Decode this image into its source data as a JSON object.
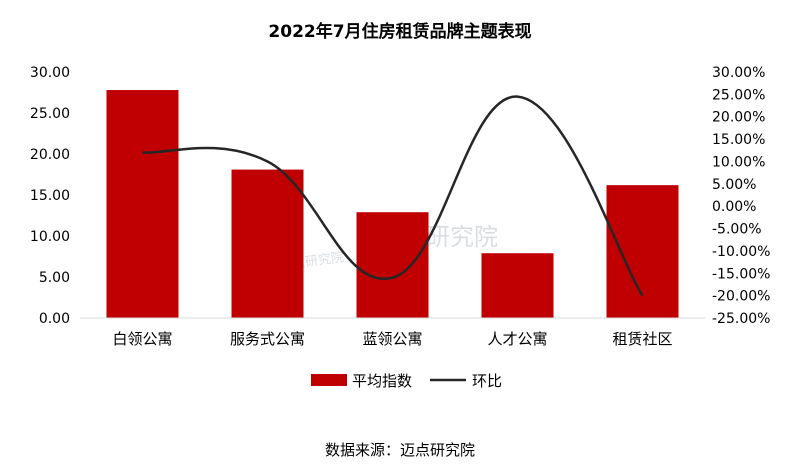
{
  "chart_data": {
    "type": "bar",
    "title": "2022年7月住房租赁品牌主题表现",
    "categories": [
      "白领公寓",
      "服务式公寓",
      "蓝领公寓",
      "人才公寓",
      "租赁社区"
    ],
    "series": [
      {
        "name": "平均指数",
        "type": "bar",
        "axis": "left",
        "color": "#c00000",
        "values": [
          27.8,
          18.1,
          12.9,
          7.9,
          16.2
        ]
      },
      {
        "name": "环比",
        "type": "line",
        "axis": "right",
        "color": "#262626",
        "values": [
          12.0,
          10.0,
          -16.0,
          24.5,
          -20.0
        ]
      }
    ],
    "ylim": [
      0,
      30
    ],
    "y2lim": [
      -25,
      30
    ],
    "yticks": [
      "0.00",
      "5.00",
      "10.00",
      "15.00",
      "20.00",
      "25.00",
      "30.00"
    ],
    "y2ticks": [
      "-25.00%",
      "-20.00%",
      "-15.00%",
      "-10.00%",
      "-5.00%",
      "0.00%",
      "5.00%",
      "10.00%",
      "15.00%",
      "20.00%",
      "25.00%",
      "30.00%"
    ],
    "legend_position": "bottom",
    "grid": false
  },
  "watermark": {
    "text": "迈点研究院",
    "small_text": "迈点研究院"
  },
  "source": "数据来源：迈点研究院"
}
